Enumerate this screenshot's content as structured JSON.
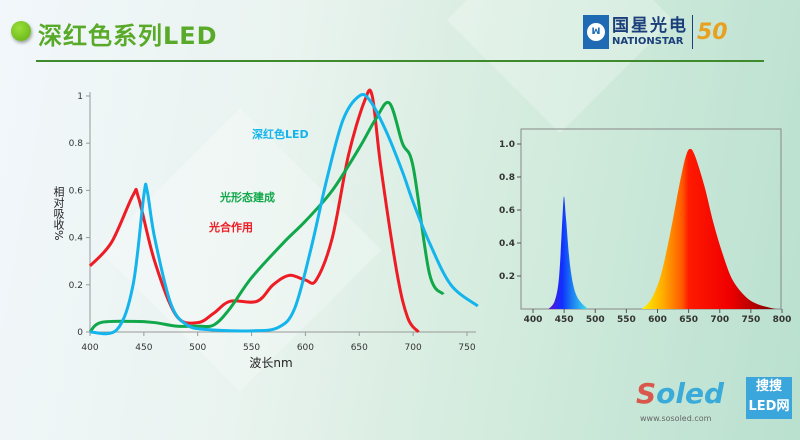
{
  "header": {
    "title": "深红色系列LED",
    "logo": {
      "cn": "国星光电",
      "en": "NATIONSTAR",
      "anniversary": "50"
    }
  },
  "watermark": {
    "brand": "Soled",
    "box_line1": "搜搜",
    "box_line2": "LED网",
    "url": "www.sosoled.com"
  },
  "colors": {
    "title": "#5aaa2a",
    "red": "#ee1c24",
    "green": "#10a84a",
    "blue": "#14b4ec"
  },
  "chart_data": [
    {
      "type": "line",
      "xlabel": "波长nm",
      "ylabel": "相对吸收%",
      "xlim": [
        400,
        760
      ],
      "ylim": [
        0,
        1
      ],
      "xticks": [
        400,
        450,
        500,
        550,
        600,
        650,
        700,
        750
      ],
      "yticks": [
        "0",
        "0.2",
        "0.4",
        "0.6",
        "0.8",
        "1"
      ],
      "grid": false,
      "series": [
        {
          "name": "光合作用",
          "color": "#ee1c24",
          "x": [
            400,
            420,
            440,
            445,
            460,
            480,
            500,
            515,
            530,
            555,
            570,
            585,
            600,
            610,
            625,
            640,
            655,
            662,
            670,
            685,
            695,
            705
          ],
          "y": [
            0.28,
            0.38,
            0.58,
            0.57,
            0.3,
            0.07,
            0.04,
            0.08,
            0.13,
            0.13,
            0.2,
            0.24,
            0.22,
            0.22,
            0.4,
            0.75,
            0.98,
            1.0,
            0.7,
            0.25,
            0.06,
            0.0
          ]
        },
        {
          "name": "光形态建成",
          "color": "#10a84a",
          "x": [
            400,
            410,
            440,
            460,
            480,
            500,
            515,
            530,
            550,
            580,
            600,
            625,
            650,
            665,
            678,
            690,
            700,
            715,
            728
          ],
          "y": [
            0,
            0.04,
            0.045,
            0.04,
            0.025,
            0.025,
            0.03,
            0.1,
            0.23,
            0.38,
            0.47,
            0.6,
            0.78,
            0.9,
            0.97,
            0.8,
            0.7,
            0.25,
            0.16
          ]
        },
        {
          "name": "深红色LED",
          "color": "#14b4ec",
          "x": [
            400,
            425,
            440,
            450,
            453,
            460,
            475,
            490,
            510,
            550,
            575,
            590,
            605,
            620,
            635,
            650,
            660,
            675,
            690,
            700,
            715,
            735,
            760
          ],
          "y": [
            0,
            0.01,
            0.2,
            0.58,
            0.6,
            0.4,
            0.12,
            0.03,
            0.01,
            0.005,
            0.02,
            0.1,
            0.35,
            0.65,
            0.9,
            1.0,
            0.98,
            0.85,
            0.68,
            0.55,
            0.38,
            0.2,
            0.11
          ]
        }
      ]
    },
    {
      "type": "area",
      "xlim": [
        380,
        800
      ],
      "ylim": [
        0,
        1.1
      ],
      "xticks": [
        400,
        450,
        500,
        550,
        600,
        650,
        700,
        750,
        800
      ],
      "yticks": [
        "0.2",
        "0.4",
        "0.6",
        "0.8",
        "1.0"
      ],
      "grid": false,
      "series": [
        {
          "x": [
            425,
            435,
            442,
            448,
            450,
            453,
            460,
            470,
            488
          ],
          "y": [
            0,
            0.05,
            0.2,
            0.6,
            0.68,
            0.55,
            0.25,
            0.08,
            0
          ]
        },
        {
          "x": [
            575,
            590,
            605,
            620,
            635,
            645,
            652,
            660,
            675,
            690,
            705,
            720,
            740,
            760,
            790
          ],
          "y": [
            0,
            0.06,
            0.2,
            0.45,
            0.75,
            0.92,
            0.97,
            0.93,
            0.75,
            0.52,
            0.33,
            0.18,
            0.08,
            0.03,
            0
          ]
        }
      ]
    }
  ]
}
